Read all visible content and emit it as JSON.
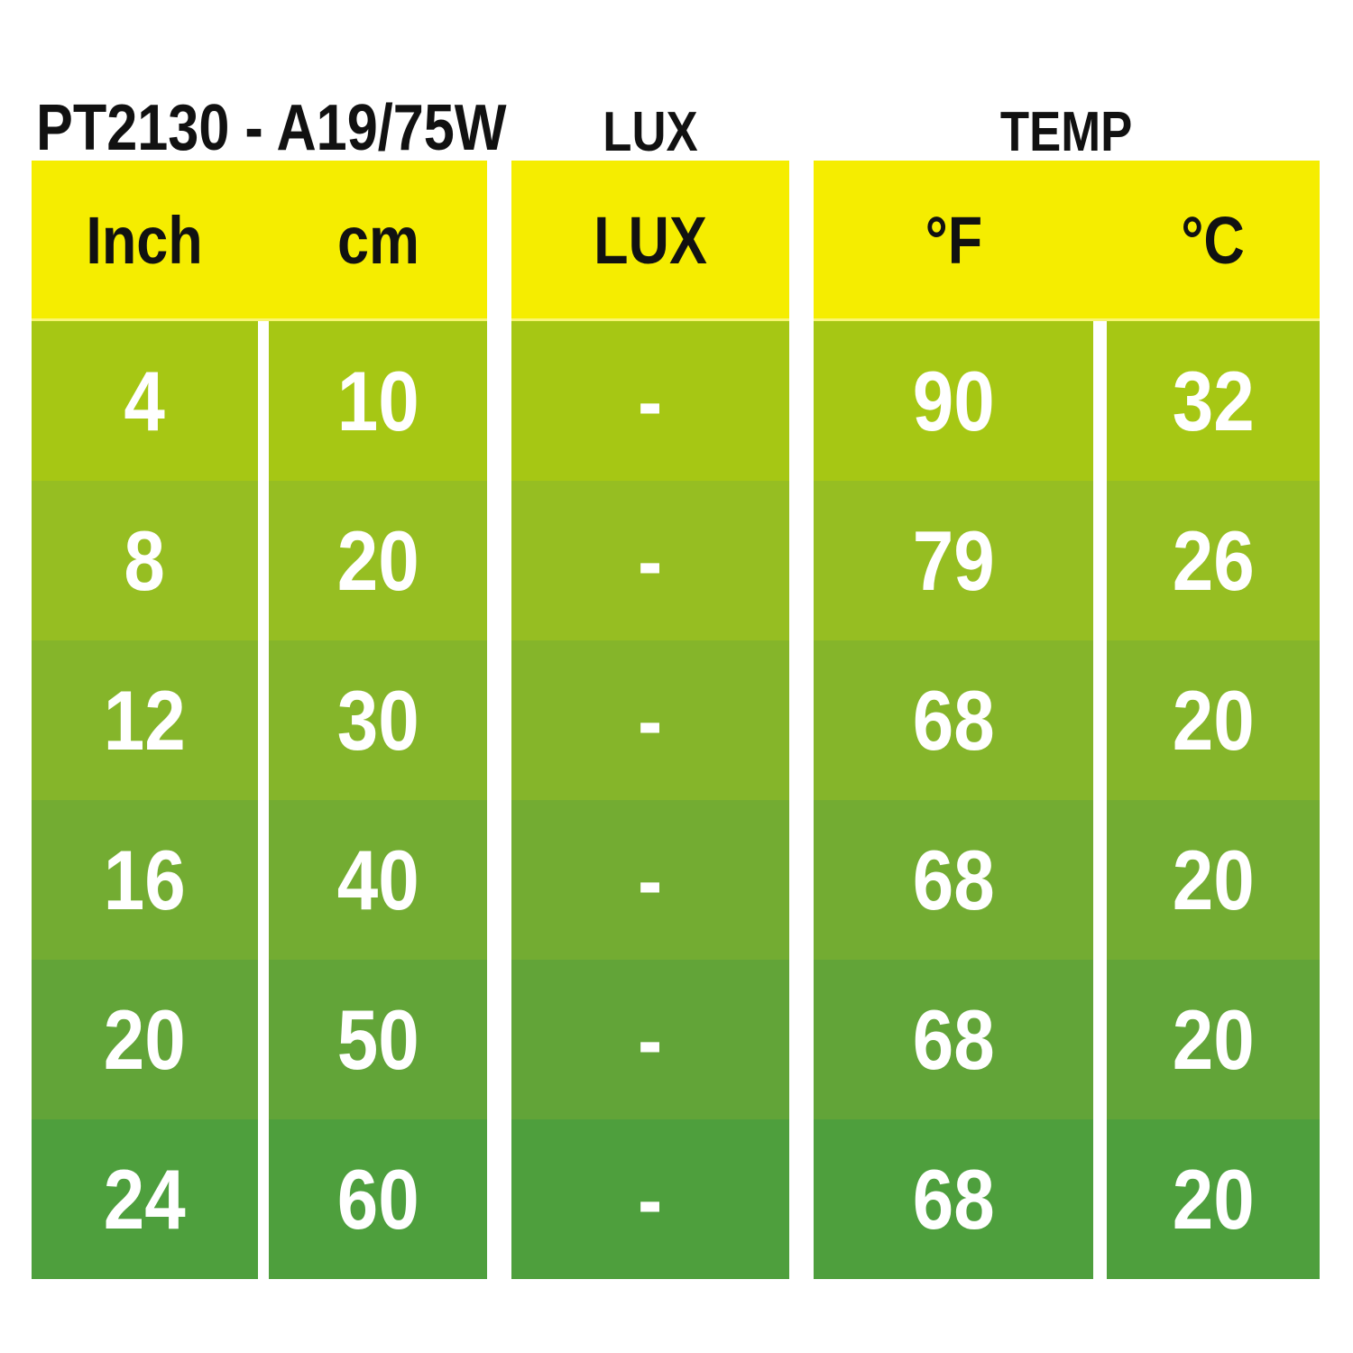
{
  "page": {
    "background": "#ffffff"
  },
  "caption": {
    "product_code": "PT2130 - A19/75W",
    "lux_section": "LUX",
    "temp_section": "TEMP"
  },
  "table": {
    "header_bg": "#F5ED00",
    "header_text_color": "#111111",
    "data_text_color": "#ffffff",
    "columns": [
      {
        "key": "inch",
        "label": "Inch"
      },
      {
        "key": "cm",
        "label": "cm"
      },
      {
        "key": "lux",
        "label": "LUX"
      },
      {
        "key": "f",
        "label": "°F"
      },
      {
        "key": "c",
        "label": "°C"
      }
    ],
    "rows": [
      {
        "inch": "4",
        "cm": "10",
        "lux": "-",
        "f": "90",
        "c": "32",
        "bg": "#A6C714"
      },
      {
        "inch": "8",
        "cm": "20",
        "lux": "-",
        "f": "79",
        "c": "26",
        "bg": "#96BE22"
      },
      {
        "inch": "12",
        "cm": "30",
        "lux": "-",
        "f": "68",
        "c": "20",
        "bg": "#85B52A"
      },
      {
        "inch": "16",
        "cm": "40",
        "lux": "-",
        "f": "68",
        "c": "20",
        "bg": "#73AC32"
      },
      {
        "inch": "20",
        "cm": "50",
        "lux": "-",
        "f": "68",
        "c": "20",
        "bg": "#62A438"
      },
      {
        "inch": "24",
        "cm": "60",
        "lux": "-",
        "f": "68",
        "c": "20",
        "bg": "#4E9F3D"
      }
    ]
  },
  "chart_data": {
    "type": "table",
    "title": "PT2130 - A19/75W",
    "columns": [
      "Inch",
      "cm",
      "LUX",
      "°F",
      "°C"
    ],
    "rows": [
      [
        4,
        10,
        "-",
        90,
        32
      ],
      [
        8,
        20,
        "-",
        79,
        26
      ],
      [
        12,
        30,
        "-",
        68,
        20
      ],
      [
        16,
        40,
        "-",
        68,
        20
      ],
      [
        20,
        50,
        "-",
        68,
        20
      ],
      [
        24,
        60,
        "-",
        68,
        20
      ]
    ],
    "notes": "Distance (inch/cm) vs light (LUX, no data) and temperature (°F/°C) chart for lamp PT2130 A19/75W; rows shade from yellow-green to green top to bottom."
  }
}
